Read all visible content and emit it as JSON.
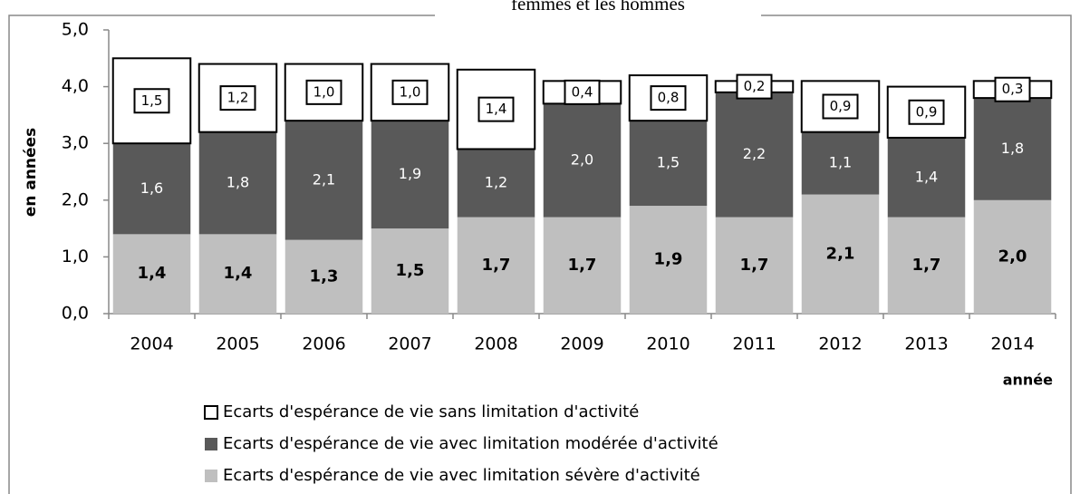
{
  "chart_data": {
    "type": "stacked_bar",
    "title": "femmes et les hommes",
    "y_label": "en années",
    "x_label": "année",
    "categories": [
      "2004",
      "2005",
      "2006",
      "2007",
      "2008",
      "2009",
      "2010",
      "2011",
      "2012",
      "2013",
      "2014"
    ],
    "series": [
      {
        "name": "Ecarts d'espérance de vie sans limitation d'activité",
        "color": "#ffffff",
        "values": [
          1.5,
          1.2,
          1.0,
          1.0,
          1.4,
          0.4,
          0.8,
          0.2,
          0.9,
          0.9,
          0.3
        ],
        "value_labels": [
          "1,5",
          "1,2",
          "1,0",
          "1,0",
          "1,4",
          "0,4",
          "0,8",
          "0,2",
          "0,9",
          "0,9",
          "0,3"
        ]
      },
      {
        "name": "Ecarts d'espérance de vie avec limitation modérée d'activité",
        "color": "#595959",
        "values": [
          1.6,
          1.8,
          2.1,
          1.9,
          1.2,
          2.0,
          1.5,
          2.2,
          1.1,
          1.4,
          1.8
        ],
        "value_labels": [
          "1,6",
          "1,8",
          "2,1",
          "1,9",
          "1,2",
          "2,0",
          "1,5",
          "2,2",
          "1,1",
          "1,4",
          "1,8"
        ]
      },
      {
        "name": "Ecarts d'espérance de vie avec limitation sévère d'activité",
        "color": "#bfbfbf",
        "values": [
          1.4,
          1.4,
          1.3,
          1.5,
          1.7,
          1.7,
          1.9,
          1.7,
          2.1,
          1.7,
          2.0
        ],
        "value_labels": [
          "1,4",
          "1,4",
          "1,3",
          "1,5",
          "1,7",
          "1,7",
          "1,9",
          "1,7",
          "2,1",
          "1,7",
          "2,0"
        ]
      }
    ],
    "ylim": [
      0,
      5
    ],
    "yticks": [
      {
        "value": 0,
        "label": "0,0"
      },
      {
        "value": 1,
        "label": "1,0"
      },
      {
        "value": 2,
        "label": "2,0"
      },
      {
        "value": 3,
        "label": "3,0"
      },
      {
        "value": 4,
        "label": "4,0"
      },
      {
        "value": 5,
        "label": "5,0"
      }
    ],
    "grid": false
  }
}
